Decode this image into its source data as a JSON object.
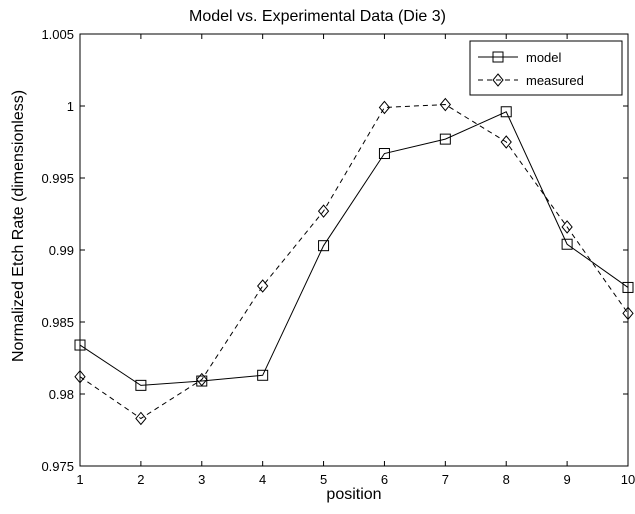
{
  "chart_data": {
    "type": "line",
    "title": "Model vs. Experimental Data (Die 3)",
    "xlabel": "position",
    "ylabel": "Normalized Etch Rate (dimensionless)",
    "x": [
      1,
      2,
      3,
      4,
      5,
      6,
      7,
      8,
      9,
      10
    ],
    "xlim": [
      1,
      10
    ],
    "ylim": [
      0.975,
      1.005
    ],
    "xticks": [
      "1",
      "2",
      "3",
      "4",
      "5",
      "6",
      "7",
      "8",
      "9",
      "10"
    ],
    "yticks": [
      {
        "value": 0.975,
        "label": "0.975"
      },
      {
        "value": 0.98,
        "label": "0.98"
      },
      {
        "value": 0.985,
        "label": "0.985"
      },
      {
        "value": 0.99,
        "label": "0.99"
      },
      {
        "value": 0.995,
        "label": "0.995"
      },
      {
        "value": 1.0,
        "label": "1"
      },
      {
        "value": 1.005,
        "label": "1.005"
      }
    ],
    "grid": false,
    "legend_position": "top-right",
    "series": [
      {
        "name": "model",
        "marker": "square",
        "line_style": "solid",
        "color": "#000000",
        "values": [
          0.9834,
          0.9806,
          0.9809,
          0.9813,
          0.9903,
          0.9967,
          0.9977,
          0.9996,
          0.9904,
          0.9874
        ]
      },
      {
        "name": "measured",
        "marker": "diamond",
        "line_style": "dashed",
        "color": "#000000",
        "values": [
          0.9812,
          0.9783,
          0.981,
          0.9875,
          0.9927,
          0.9999,
          1.0001,
          0.9975,
          0.9916,
          0.9856
        ]
      }
    ]
  }
}
